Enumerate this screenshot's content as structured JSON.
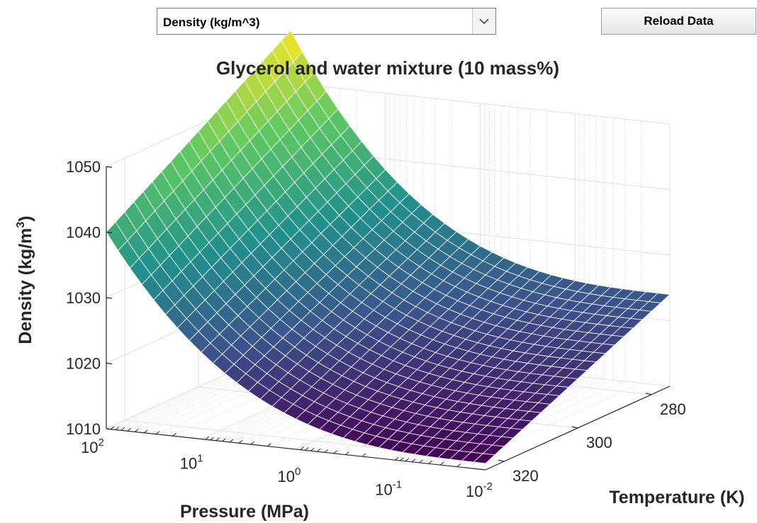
{
  "controls": {
    "property_select": {
      "selected": "Density (kg/m^3)"
    },
    "reload_label": "Reload Data"
  },
  "chart_data": {
    "type": "surface",
    "title": "Glycerol and water mixture  (10 mass%)",
    "xlabel": "Pressure (MPa)",
    "ylabel": "Temperature (K)",
    "zlabel": "Density (kg/m³)",
    "zlabel_base": "Density (kg/m",
    "zlabel_sup": "3",
    "zlabel_close": ")",
    "x_scale": "log",
    "x_range": [
      0.01,
      100
    ],
    "x_ticks": [
      {
        "value": 100,
        "base": "10",
        "exp": "2"
      },
      {
        "value": 10,
        "base": "10",
        "exp": "1"
      },
      {
        "value": 1,
        "base": "10",
        "exp": "0"
      },
      {
        "value": 0.1,
        "base": "10",
        "exp": "-1"
      },
      {
        "value": 0.01,
        "base": "10",
        "exp": "-2"
      }
    ],
    "y_range": [
      275,
      325
    ],
    "y_ticks": [
      "280",
      "300",
      "320"
    ],
    "z_range": [
      1010,
      1050
    ],
    "z_ticks": [
      "1010",
      "1020",
      "1030",
      "1040",
      "1050"
    ],
    "grid": true,
    "colormap": [
      "#440154",
      "#3b528b",
      "#21918c",
      "#5ec962",
      "#fde725"
    ],
    "corner_values": [
      {
        "pressure": 100,
        "temperature": 275,
        "density": 1058
      },
      {
        "pressure": 100,
        "temperature": 325,
        "density": 1040
      },
      {
        "pressure": 0.01,
        "temperature": 275,
        "density": 1024
      },
      {
        "pressure": 0.01,
        "temperature": 325,
        "density": 1011
      }
    ]
  }
}
